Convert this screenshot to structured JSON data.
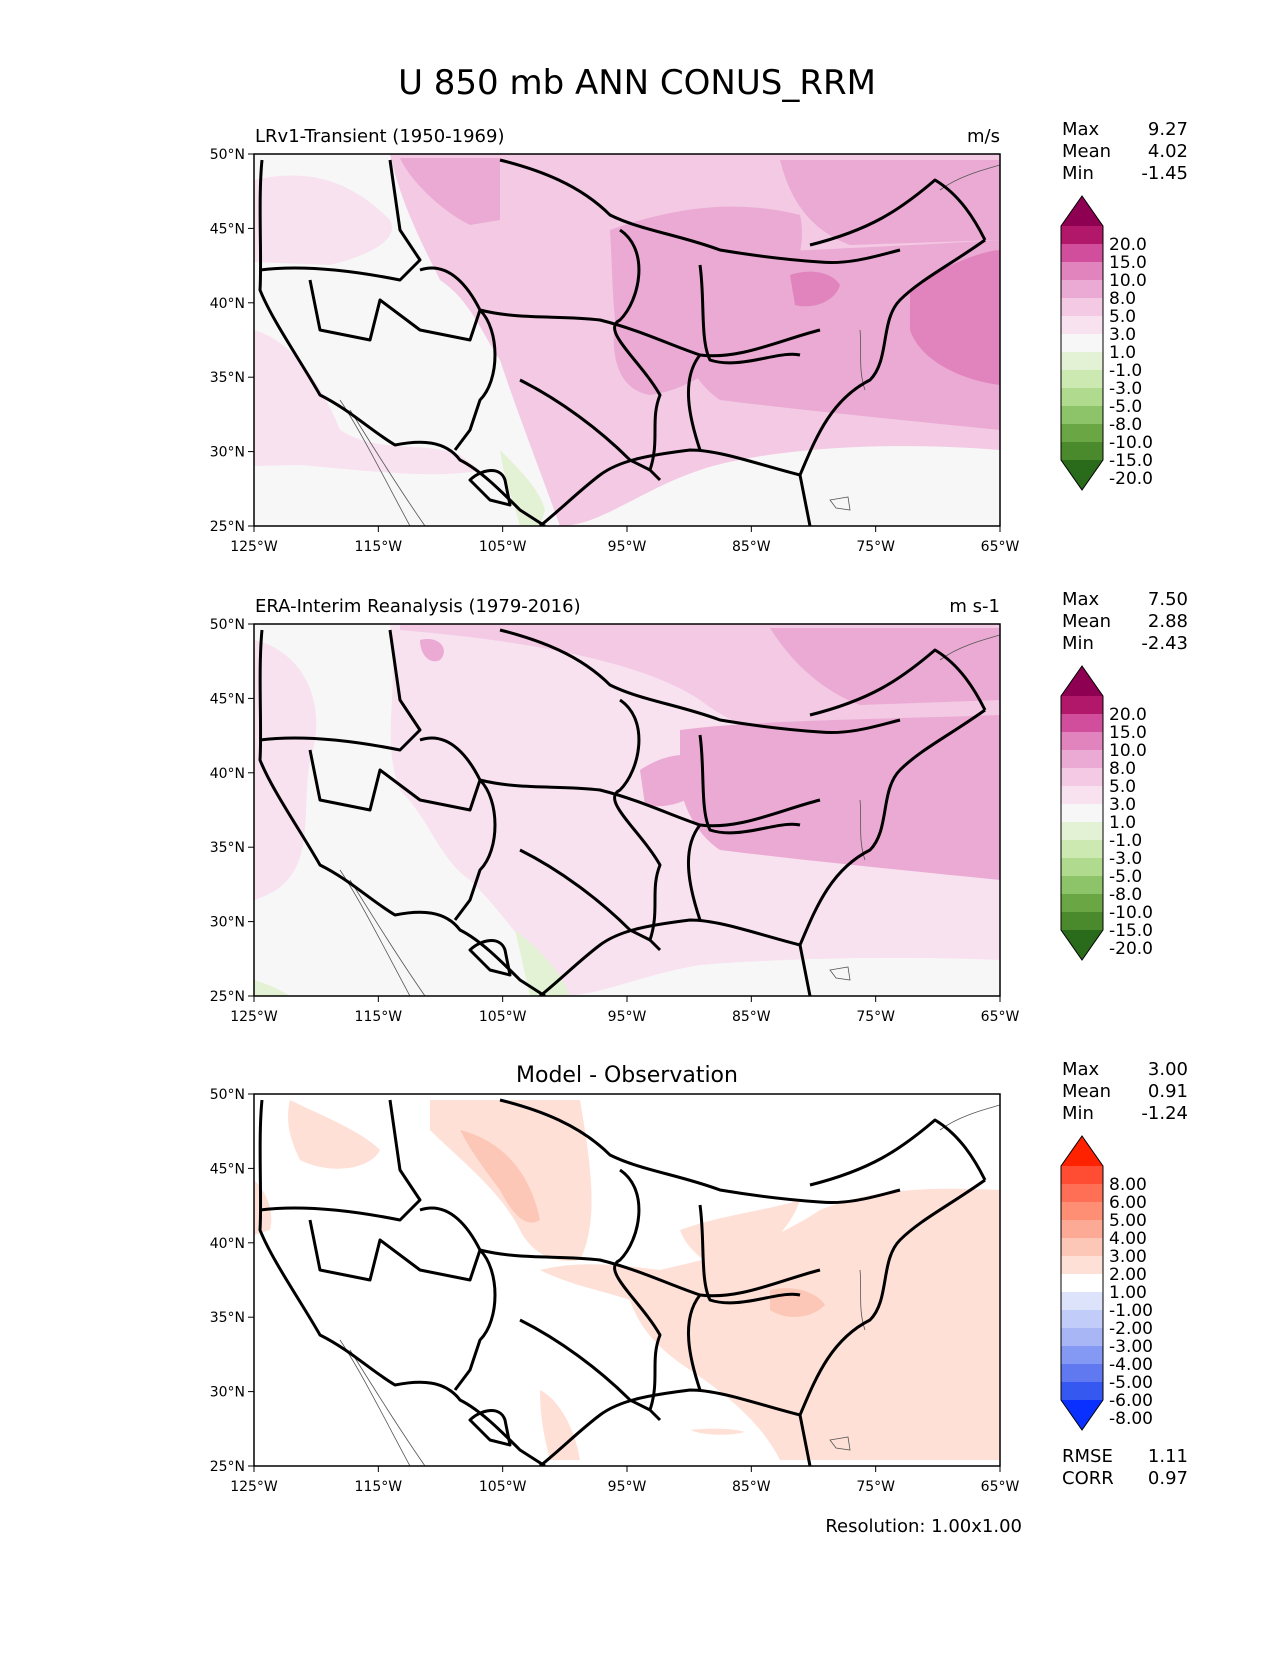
{
  "figure": {
    "title": "U 850 mb ANN CONUS_RRM",
    "resolution": "Resolution: 1.00x1.00"
  },
  "axes": {
    "lat_labels": [
      "50°N",
      "45°N",
      "40°N",
      "35°N",
      "30°N",
      "25°N"
    ],
    "lon_labels": [
      "125°W",
      "115°W",
      "105°W",
      "95°W",
      "85°W",
      "75°W",
      "65°W"
    ]
  },
  "panels": [
    {
      "title": "LRv1-Transient (1950-1969)",
      "units": "m/s",
      "stats": [
        {
          "label": "Max",
          "value": "9.27"
        },
        {
          "label": "Mean",
          "value": "4.02"
        },
        {
          "label": "Min",
          "value": "-1.45"
        }
      ]
    },
    {
      "title": "ERA-Interim Reanalysis (1979-2016)",
      "units": "m s-1",
      "stats": [
        {
          "label": "Max",
          "value": "7.50"
        },
        {
          "label": "Mean",
          "value": "2.88"
        },
        {
          "label": "Min",
          "value": "-2.43"
        }
      ]
    },
    {
      "title": "Model - Observation",
      "units": "",
      "stats": [
        {
          "label": "Max",
          "value": "3.00"
        },
        {
          "label": "Mean",
          "value": "0.91"
        },
        {
          "label": "Min",
          "value": "-1.24"
        }
      ],
      "metrics": [
        {
          "label": "RMSE",
          "value": "1.11"
        },
        {
          "label": "CORR",
          "value": "0.97"
        }
      ]
    }
  ],
  "colorbars": {
    "field": {
      "labels": [
        "20.0",
        "15.0",
        "10.0",
        "8.0",
        "5.0",
        "3.0",
        "1.0",
        "-1.0",
        "-3.0",
        "-5.0",
        "-8.0",
        "-10.0",
        "-15.0",
        "-20.0"
      ],
      "colors": [
        "#8e0152",
        "#b2186a",
        "#d04e9c",
        "#e183bd",
        "#eaaad4",
        "#f3c9e4",
        "#f8e2f0",
        "#f7f7f7",
        "#e3f2d4",
        "#cde9b2",
        "#b0da8d",
        "#8dc46a",
        "#6ba645",
        "#4a8a2c",
        "#2a6a1b"
      ]
    },
    "diff": {
      "labels": [
        "8.00",
        "6.00",
        "5.00",
        "4.00",
        "3.00",
        "2.00",
        "1.00",
        "-1.00",
        "-2.00",
        "-3.00",
        "-4.00",
        "-5.00",
        "-6.00",
        "-8.00"
      ],
      "colors": [
        "#ff2200",
        "#ff4d33",
        "#ff6f55",
        "#fe8f75",
        "#fcaa95",
        "#fdc7b7",
        "#fee0d6",
        "#ffffff",
        "#dde3fb",
        "#c2ccf8",
        "#a8b6f6",
        "#8399f3",
        "#6079f1",
        "#3558f0",
        "#0a30ff"
      ]
    }
  }
}
